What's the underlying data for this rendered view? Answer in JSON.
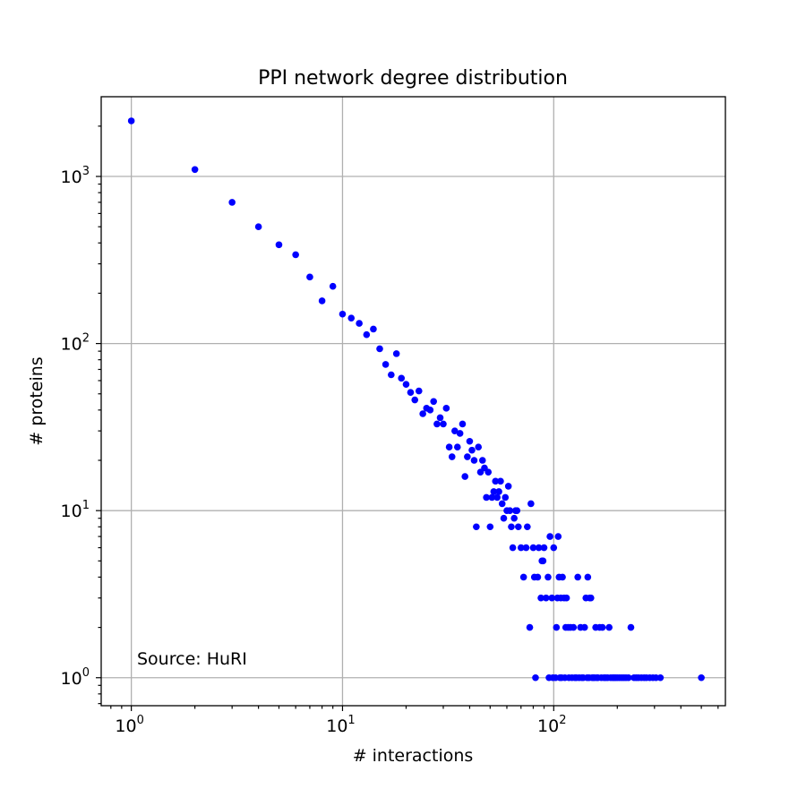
{
  "chart_data": {
    "type": "scatter",
    "title": "PPI network degree distribution",
    "xlabel": "# interactions",
    "ylabel": "# proteins",
    "xscale": "log",
    "yscale": "log",
    "xlim": [
      0.72,
      650
    ],
    "ylim": [
      0.68,
      3000
    ],
    "grid": true,
    "marker_color": "#0000ff",
    "x_ticks": [
      {
        "base": "10",
        "exp": "0",
        "value": 1
      },
      {
        "base": "10",
        "exp": "1",
        "value": 10
      },
      {
        "base": "10",
        "exp": "2",
        "value": 100
      }
    ],
    "y_ticks": [
      {
        "base": "10",
        "exp": "0",
        "value": 1
      },
      {
        "base": "10",
        "exp": "1",
        "value": 10
      },
      {
        "base": "10",
        "exp": "2",
        "value": 100
      },
      {
        "base": "10",
        "exp": "3",
        "value": 1000
      }
    ],
    "annotation": "Source: HuRI",
    "points": [
      [
        1,
        2150
      ],
      [
        2,
        1100
      ],
      [
        3,
        700
      ],
      [
        4,
        500
      ],
      [
        5,
        390
      ],
      [
        6,
        340
      ],
      [
        7,
        250
      ],
      [
        8,
        180
      ],
      [
        9,
        220
      ],
      [
        10,
        150
      ],
      [
        11,
        142
      ],
      [
        12,
        132
      ],
      [
        13,
        113
      ],
      [
        14,
        122
      ],
      [
        15,
        93
      ],
      [
        16,
        75
      ],
      [
        17,
        65
      ],
      [
        18,
        87
      ],
      [
        19,
        62
      ],
      [
        20,
        57
      ],
      [
        21,
        51
      ],
      [
        22,
        46
      ],
      [
        23,
        52
      ],
      [
        24,
        38
      ],
      [
        25,
        41
      ],
      [
        26,
        40
      ],
      [
        27,
        45
      ],
      [
        28,
        33
      ],
      [
        29,
        36
      ],
      [
        30,
        33
      ],
      [
        31,
        41
      ],
      [
        32,
        24
      ],
      [
        33,
        21
      ],
      [
        34,
        30
      ],
      [
        35,
        24
      ],
      [
        36,
        29
      ],
      [
        37,
        33
      ],
      [
        38,
        16
      ],
      [
        39,
        21
      ],
      [
        40,
        26
      ],
      [
        41,
        23
      ],
      [
        42,
        20
      ],
      [
        43,
        8
      ],
      [
        44,
        24
      ],
      [
        45,
        17
      ],
      [
        46,
        20
      ],
      [
        47,
        18
      ],
      [
        48,
        12
      ],
      [
        49,
        17
      ],
      [
        50,
        8
      ],
      [
        51,
        12
      ],
      [
        52,
        13
      ],
      [
        53,
        15
      ],
      [
        54,
        12
      ],
      [
        55,
        13
      ],
      [
        56,
        15
      ],
      [
        57,
        11
      ],
      [
        58,
        9
      ],
      [
        59,
        12
      ],
      [
        60,
        10
      ],
      [
        61,
        14
      ],
      [
        62,
        10
      ],
      [
        63,
        8
      ],
      [
        64,
        6
      ],
      [
        65,
        9
      ],
      [
        66,
        10
      ],
      [
        67,
        10
      ],
      [
        68,
        8
      ],
      [
        70,
        6
      ],
      [
        72,
        4
      ],
      [
        74,
        6
      ],
      [
        75,
        8
      ],
      [
        77,
        2
      ],
      [
        78,
        11
      ],
      [
        80,
        6
      ],
      [
        81,
        4
      ],
      [
        82,
        1
      ],
      [
        84,
        4
      ],
      [
        85,
        6
      ],
      [
        87,
        3
      ],
      [
        88,
        5
      ],
      [
        89,
        5
      ],
      [
        90,
        6
      ],
      [
        92,
        3
      ],
      [
        94,
        4
      ],
      [
        95,
        1
      ],
      [
        96,
        7
      ],
      [
        98,
        3
      ],
      [
        99,
        1
      ],
      [
        100,
        6
      ],
      [
        102,
        1
      ],
      [
        103,
        2
      ],
      [
        104,
        3
      ],
      [
        105,
        7
      ],
      [
        106,
        4
      ],
      [
        107,
        1
      ],
      [
        108,
        3
      ],
      [
        109,
        1
      ],
      [
        110,
        4
      ],
      [
        112,
        3
      ],
      [
        113,
        1
      ],
      [
        114,
        2
      ],
      [
        115,
        3
      ],
      [
        117,
        2
      ],
      [
        118,
        1
      ],
      [
        120,
        2
      ],
      [
        122,
        1
      ],
      [
        124,
        2
      ],
      [
        126,
        1
      ],
      [
        128,
        1
      ],
      [
        130,
        4
      ],
      [
        132,
        1
      ],
      [
        134,
        2
      ],
      [
        136,
        1
      ],
      [
        138,
        1
      ],
      [
        140,
        2
      ],
      [
        142,
        3
      ],
      [
        144,
        1
      ],
      [
        145,
        4
      ],
      [
        147,
        1
      ],
      [
        148,
        3
      ],
      [
        150,
        3
      ],
      [
        152,
        1
      ],
      [
        154,
        1
      ],
      [
        156,
        1
      ],
      [
        158,
        2
      ],
      [
        160,
        1
      ],
      [
        162,
        1
      ],
      [
        165,
        2
      ],
      [
        168,
        1
      ],
      [
        170,
        2
      ],
      [
        173,
        1
      ],
      [
        176,
        1
      ],
      [
        180,
        1
      ],
      [
        183,
        2
      ],
      [
        186,
        1
      ],
      [
        190,
        1
      ],
      [
        193,
        1
      ],
      [
        196,
        1
      ],
      [
        200,
        1
      ],
      [
        205,
        1
      ],
      [
        210,
        1
      ],
      [
        215,
        1
      ],
      [
        220,
        1
      ],
      [
        226,
        1
      ],
      [
        232,
        2
      ],
      [
        240,
        1
      ],
      [
        246,
        1
      ],
      [
        252,
        1
      ],
      [
        260,
        1
      ],
      [
        268,
        1
      ],
      [
        275,
        1
      ],
      [
        285,
        1
      ],
      [
        295,
        1
      ],
      [
        305,
        1
      ],
      [
        320,
        1
      ],
      [
        500,
        1
      ]
    ]
  }
}
